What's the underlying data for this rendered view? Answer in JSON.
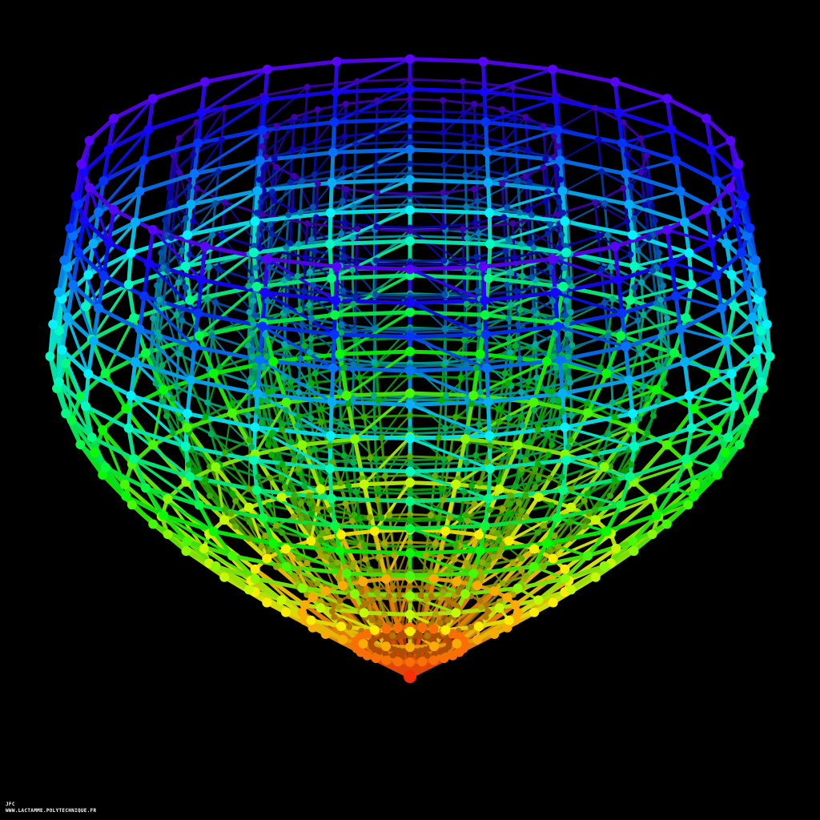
{
  "credit": {
    "author": "JFC",
    "url": "WWW.LACTAMME.POLYTECHNIQUE.FR"
  },
  "colors": {
    "background": "#000000",
    "bottom": "#e03010",
    "middle": "#20d020",
    "top": "#3020c0"
  }
}
